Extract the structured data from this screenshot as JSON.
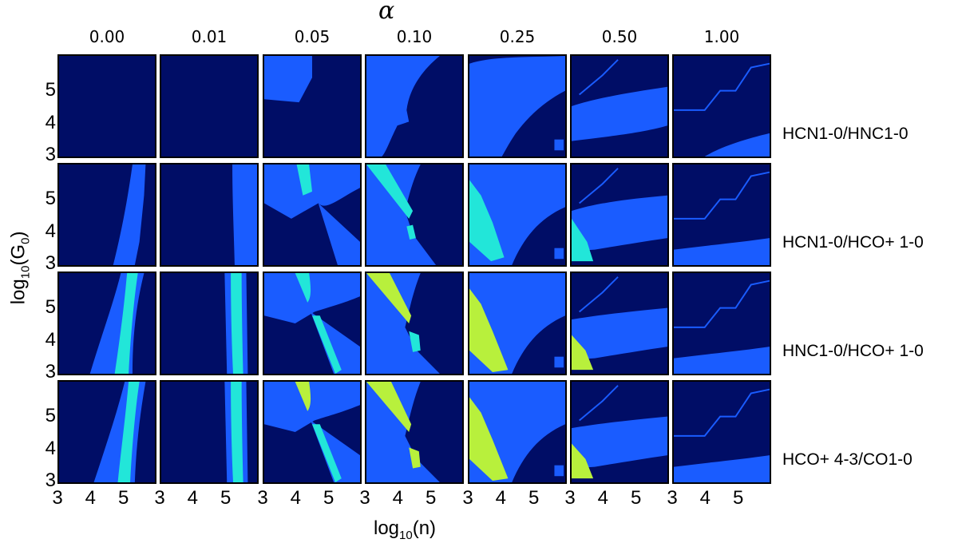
{
  "figure": {
    "title": "α",
    "xlabel_base": "log",
    "xlabel_sub": "10",
    "xlabel_tail": "(n)",
    "ylabel_base": "log",
    "ylabel_sub": "10",
    "ylabel_tail": "(G",
    "ylabel_sub2": "0",
    "ylabel_end": ")"
  },
  "colors": {
    "background": "#000d66",
    "level1": "#1a5cff",
    "level2": "#22e6d9",
    "level3": "#b8f03c",
    "frame": "#000000"
  },
  "chart_data": {
    "type": "heatmap",
    "columns": [
      "0.00",
      "0.01",
      "0.05",
      "0.10",
      "0.25",
      "0.50",
      "1.00"
    ],
    "rows": [
      "HCN1-0/HNC1-0",
      "HCN1-0/HCO+ 1-0",
      "HNC1-0/HCO+ 1-0",
      "HCO+ 4-3/CO1-0"
    ],
    "xticks": [
      "3",
      "4",
      "5"
    ],
    "yticks": [
      "5",
      "4",
      "3"
    ],
    "xlim": [
      3,
      6
    ],
    "ylim": [
      3,
      6
    ]
  }
}
